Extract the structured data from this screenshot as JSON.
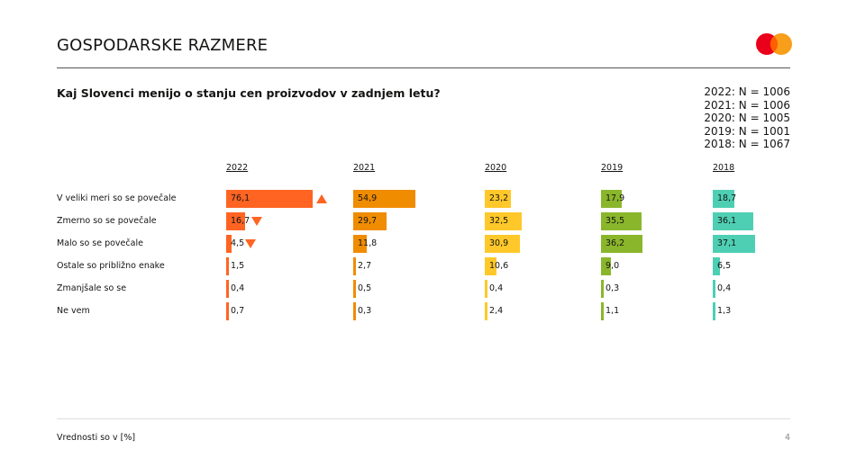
{
  "header": {
    "title": "GOSPODARSKE RAZMERE",
    "logo": "mastercard-logo"
  },
  "question": "Kaj Slovenci menijo o stanju cen proizvodov v zadnjem letu?",
  "sample_sizes": [
    "2022: N = 1006",
    "2021: N = 1006",
    "2020: N = 1005",
    "2019: N = 1001",
    "2018: N = 1067"
  ],
  "chart_data": {
    "type": "bar",
    "orientation": "horizontal",
    "unit": "%",
    "categories": [
      "V veliki meri so se povečale",
      "Zmerno so se povečale",
      "Malo so se povečale",
      "Ostale so približno enake",
      "Zmanjšale so se",
      "Ne vem"
    ],
    "series": [
      {
        "name": "2022",
        "color": "#FF6422",
        "values": [
          76.1,
          16.7,
          4.5,
          1.5,
          0.4,
          0.7
        ],
        "labels": [
          "76,1",
          "16,7",
          "4,5",
          "1,5",
          "0,4",
          "0,7"
        ],
        "markers": [
          "up",
          "down",
          "down",
          null,
          null,
          null
        ]
      },
      {
        "name": "2021",
        "color": "#F08C00",
        "values": [
          54.9,
          29.7,
          11.8,
          2.7,
          0.5,
          0.3
        ],
        "labels": [
          "54,9",
          "29,7",
          "11,8",
          "2,7",
          "0,5",
          "0,3"
        ]
      },
      {
        "name": "2020",
        "color": "#FFC82A",
        "values": [
          23.2,
          32.5,
          30.9,
          10.6,
          0.4,
          2.4
        ],
        "labels": [
          "23,2",
          "32,5",
          "30,9",
          "10,6",
          "0,4",
          "2,4"
        ]
      },
      {
        "name": "2019",
        "color": "#8AB62C",
        "values": [
          17.9,
          35.5,
          36.2,
          9.0,
          0.3,
          1.1
        ],
        "labels": [
          "17,9",
          "35,5",
          "36,2",
          "9,0",
          "0,3",
          "1,1"
        ]
      },
      {
        "name": "2018",
        "color": "#4ECFB3",
        "values": [
          18.7,
          36.1,
          37.1,
          6.5,
          0.4,
          1.3
        ],
        "labels": [
          "18,7",
          "36,1",
          "37,1",
          "6,5",
          "0,4",
          "1,3"
        ]
      }
    ],
    "marker_color": "#FF6422"
  },
  "footer": {
    "note": "Vrednosti so v [%]",
    "page": "4"
  }
}
